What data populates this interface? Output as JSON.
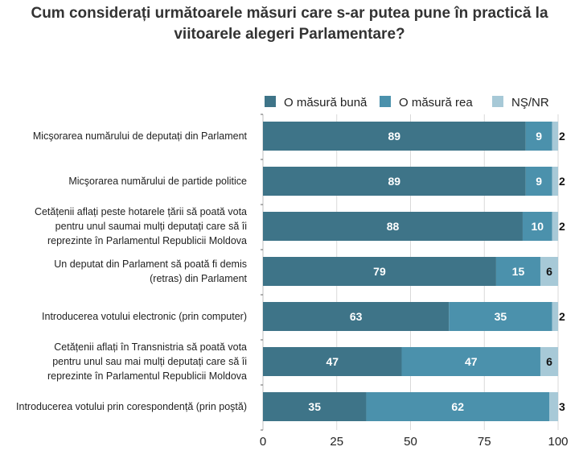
{
  "chart_data": {
    "type": "bar",
    "orientation": "horizontal",
    "stacked": true,
    "title": "Cum considerați următoarele măsuri care s-ar putea pune în practică la viitoarele alegeri Parlamentare?",
    "title_lines": [
      "Cum considerați următoarele măsuri care s-ar putea pune în practică la",
      "viitoarele alegeri Parlamentare?"
    ],
    "categories": [
      [
        "Micşorarea numărului de deputați din Parlament"
      ],
      [
        "Micşorarea numărului de partide politice"
      ],
      [
        "Cetățenii aflați peste hotarele țării să poată vota",
        "pentru unul saumai mulți deputați care să îi",
        "reprezinte în Parlamentul Republicii Moldova"
      ],
      [
        "Un deputat din Parlament să poată fi demis",
        "(retras) din Parlament"
      ],
      [
        "Introducerea votului electronic (prin computer)"
      ],
      [
        "Cetățenii aflați în Transnistria să poată vota",
        "pentru unul sau mai mulți deputați care să îi",
        "reprezinte în Parlamentul Republicii Moldova"
      ],
      [
        "Introducerea votului prin corespondență (prin poştă)"
      ]
    ],
    "series": [
      {
        "name": "O măsură bună",
        "color": "#3e7488",
        "label_color": "#ffffff",
        "values": [
          89,
          89,
          88,
          79,
          63,
          47,
          35
        ]
      },
      {
        "name": "O măsură rea",
        "color": "#4b91ac",
        "label_color": "#ffffff",
        "values": [
          9,
          9,
          10,
          15,
          35,
          47,
          62
        ]
      },
      {
        "name": "NŞ/NR",
        "color": "#a7c9d7",
        "label_color": "#111111",
        "values": [
          2,
          2,
          2,
          6,
          2,
          6,
          3
        ]
      }
    ],
    "xlim": [
      0,
      100
    ],
    "xticks": [
      "0",
      "25",
      "50",
      "75",
      "100"
    ],
    "xtick_values": [
      0,
      25,
      50,
      75,
      100
    ],
    "grid": true,
    "legend_position": "top-right",
    "xlabel": "",
    "ylabel": ""
  }
}
